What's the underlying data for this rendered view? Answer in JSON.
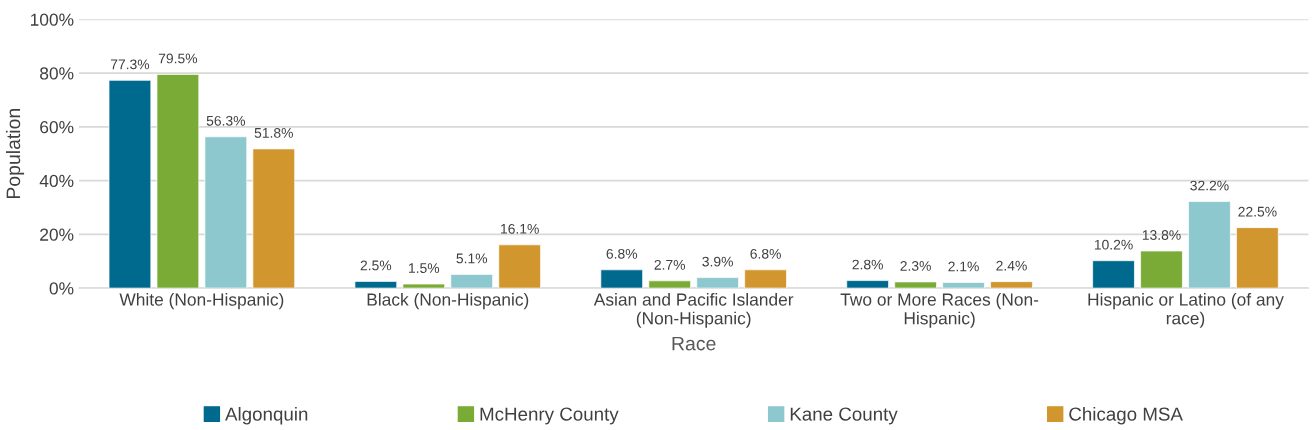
{
  "chart_data": {
    "type": "bar",
    "xlabel": "Race",
    "ylabel": "Population",
    "categories": [
      "White (Non-Hispanic)",
      "Black (Non-Hispanic)",
      "Asian and Pacific Islander\n(Non-Hispanic)",
      "Two or More Races (Non-\nHispanic)",
      "Hispanic or Latino (of any\nrace)"
    ],
    "series": [
      {
        "name": "Algonquin",
        "color": "#006a8e",
        "values": [
          77.3,
          2.5,
          6.8,
          2.8,
          10.2
        ],
        "value_labels": [
          "77.3%",
          "2.5%",
          "6.8%",
          "2.8%",
          "10.2%"
        ]
      },
      {
        "name": "McHenry County",
        "color": "#7aab37",
        "values": [
          79.5,
          1.5,
          2.7,
          2.3,
          13.8
        ],
        "value_labels": [
          "79.5%",
          "1.5%",
          "2.7%",
          "2.3%",
          "13.8%"
        ]
      },
      {
        "name": "Kane County",
        "color": "#8dc8ce",
        "values": [
          56.3,
          5.1,
          3.9,
          2.1,
          32.2
        ],
        "value_labels": [
          "56.3%",
          "5.1%",
          "3.9%",
          "2.1%",
          "32.2%"
        ]
      },
      {
        "name": "Chicago MSA",
        "color": "#d1962d",
        "values": [
          51.8,
          16.1,
          6.8,
          2.4,
          22.5
        ],
        "value_labels": [
          "51.8%",
          "16.1%",
          "6.8%",
          "2.4%",
          "22.5%"
        ]
      }
    ],
    "ylim": [
      0,
      100
    ],
    "yticks": [
      {
        "value": 0,
        "label": "0%"
      },
      {
        "value": 20,
        "label": "20%"
      },
      {
        "value": 40,
        "label": "40%"
      },
      {
        "value": 60,
        "label": "60%"
      },
      {
        "value": 80,
        "label": "80%"
      },
      {
        "value": 100,
        "label": "100%"
      }
    ],
    "grid": "y",
    "legend": "bottom"
  }
}
